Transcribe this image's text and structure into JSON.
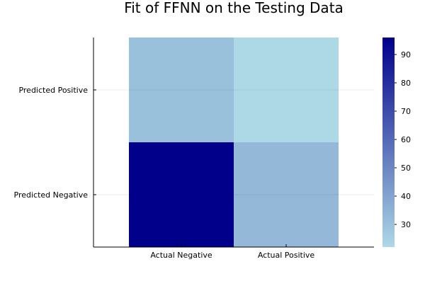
{
  "chart_data": {
    "type": "heatmap",
    "title": "Fit of FFNN on the Testing Data",
    "x_categories": [
      "Actual Negative",
      "Actual Positive"
    ],
    "y_categories": [
      "Predicted Negative",
      "Predicted Positive"
    ],
    "cells": [
      {
        "x": "Actual Negative",
        "y": "Predicted Positive",
        "value": 30
      },
      {
        "x": "Actual Positive",
        "y": "Predicted Positive",
        "value": 22
      },
      {
        "x": "Actual Negative",
        "y": "Predicted Negative",
        "value": 96
      },
      {
        "x": "Actual Positive",
        "y": "Predicted Negative",
        "value": 33
      }
    ],
    "colorbar": {
      "min": 22,
      "max": 96,
      "ticks": [
        30,
        40,
        50,
        60,
        70,
        80,
        90
      ],
      "low_color": "#add8e6",
      "high_color": "#00008b"
    },
    "grid": true,
    "legend": "colorbar-right"
  }
}
